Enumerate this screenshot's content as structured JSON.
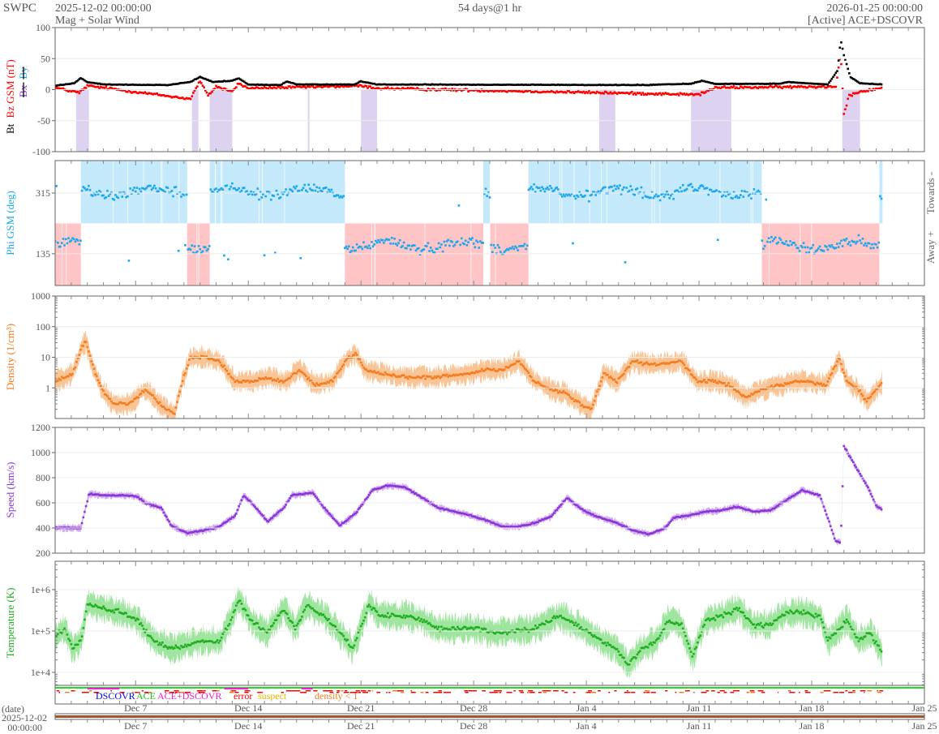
{
  "header": {
    "org": "SWPC",
    "start": "2025-12-02 00:00:00",
    "subtitle": "Mag + Solar Wind",
    "span": "54 days@1 hr",
    "end": "2026-01-25 00:00:00",
    "source": "[Active] ACE+DSCOVR"
  },
  "legend": {
    "dscovr": "DSCOVR",
    "ace": "ACE",
    "ace_dscovr": "ACE+DSCOVR",
    "error": "error",
    "suspect": "suspect",
    "density": "density < 1"
  },
  "date_axis": {
    "label": "(date)",
    "start_date": "2025-12-02",
    "start_time": "00:00:00",
    "ticks": [
      "Dec 7",
      "Dec 14",
      "Dec 21",
      "Dec 28",
      "Jan 4",
      "Jan 11",
      "Jan 18",
      "Jan 25"
    ],
    "tick_days": [
      5,
      12,
      19,
      26,
      33,
      40,
      47,
      54
    ]
  },
  "colors": {
    "bt": "#000000",
    "bz": "#ff0000",
    "bx": "#8a2be2",
    "by": "#1aa7ee",
    "phi": "#1aa7ee",
    "towards_fill": "#c4e9fb",
    "away_fill": "#ffc4c6",
    "density": "#f57c1f",
    "density_fill": "#f9c597",
    "speed": "#8b35d8",
    "speed_fill": "#d2b0f0",
    "temp": "#1fae1f",
    "temp_fill": "#9fe59f",
    "south_fill": "#ddd3f0"
  },
  "chart_data": [
    {
      "type": "scatter",
      "name": "mag",
      "ylabel_parts": [
        "Bt",
        "Bz GSM (nT)",
        "Bx",
        "By"
      ],
      "ylim": [
        -100,
        100
      ],
      "yticks": [
        100,
        50,
        0,
        -50,
        -100
      ],
      "x_unit": "days since 2025-12-02",
      "bt": [
        [
          0,
          6
        ],
        [
          1.2,
          10
        ],
        [
          1.6,
          18
        ],
        [
          2,
          12
        ],
        [
          3,
          8
        ],
        [
          7,
          7
        ],
        [
          8.4,
          12
        ],
        [
          9,
          20
        ],
        [
          9.8,
          12
        ],
        [
          11,
          14
        ],
        [
          11.4,
          18
        ],
        [
          12,
          8
        ],
        [
          14,
          7
        ],
        [
          14.4,
          13
        ],
        [
          15,
          8
        ],
        [
          18.6,
          8
        ],
        [
          19,
          13
        ],
        [
          20,
          8
        ],
        [
          36.9,
          7
        ],
        [
          37.5,
          8
        ],
        [
          39.5,
          9
        ],
        [
          40.2,
          14
        ],
        [
          41,
          9
        ],
        [
          45,
          9
        ],
        [
          45.5,
          12
        ],
        [
          48,
          8
        ],
        [
          48.6,
          30
        ],
        [
          48.8,
          80
        ],
        [
          49,
          55
        ],
        [
          49.4,
          20
        ],
        [
          50,
          10
        ],
        [
          51.4,
          8
        ]
      ],
      "bz": [
        [
          0,
          3
        ],
        [
          1.5,
          -5
        ],
        [
          2,
          6
        ],
        [
          3,
          3
        ],
        [
          8.4,
          -15
        ],
        [
          9,
          14
        ],
        [
          9.5,
          -10
        ],
        [
          10,
          5
        ],
        [
          11,
          -3
        ],
        [
          11.4,
          10
        ],
        [
          12,
          2
        ],
        [
          19,
          6
        ],
        [
          20,
          2
        ],
        [
          34,
          -5
        ],
        [
          40,
          -8
        ],
        [
          41,
          3
        ],
        [
          48.5,
          5
        ],
        [
          48.8,
          60
        ],
        [
          49,
          -40
        ],
        [
          49.3,
          -10
        ],
        [
          50,
          -3
        ],
        [
          51.4,
          3
        ]
      ],
      "southward_intervals": [
        [
          1.3,
          2.1
        ],
        [
          8.5,
          8.9
        ],
        [
          9.6,
          11
        ],
        [
          15.7,
          15.8
        ],
        [
          19,
          20
        ],
        [
          33.8,
          34.8
        ],
        [
          39.5,
          42
        ],
        [
          48.9,
          50
        ]
      ]
    },
    {
      "type": "scatter",
      "name": "phi",
      "ylabel": "Phi GSM (deg)",
      "yticks": [
        315,
        135
      ],
      "ylim": [
        41,
        411
      ],
      "right_labels": [
        "Towards -",
        "Away +"
      ],
      "sectors": [
        [
          0,
          1.6,
          "away"
        ],
        [
          1.6,
          8.2,
          "towards"
        ],
        [
          8.2,
          9.6,
          "away"
        ],
        [
          9.6,
          18,
          "towards"
        ],
        [
          18,
          26.6,
          "away"
        ],
        [
          26.6,
          27,
          "towards"
        ],
        [
          27,
          29.4,
          "away"
        ],
        [
          29.4,
          43.9,
          "towards"
        ],
        [
          43.9,
          51.2,
          "away"
        ],
        [
          51.2,
          51.4,
          "towards"
        ]
      ]
    },
    {
      "type": "scatter",
      "name": "density",
      "scale": "log",
      "ylabel": "Density (1/cm³)",
      "ylim": [
        0.1,
        1000
      ],
      "yticks": [
        1000,
        100,
        10,
        1
      ],
      "values": [
        [
          0,
          1.6
        ],
        [
          1.1,
          3
        ],
        [
          1.6,
          18
        ],
        [
          1.9,
          33
        ],
        [
          2.4,
          4
        ],
        [
          2.9,
          0.9
        ],
        [
          3.6,
          0.3
        ],
        [
          4.6,
          0.3
        ],
        [
          5.6,
          0.9
        ],
        [
          6.6,
          0.26
        ],
        [
          7.4,
          0.14
        ],
        [
          7.9,
          1.6
        ],
        [
          8.4,
          10
        ],
        [
          9.2,
          10
        ],
        [
          10.2,
          7.4
        ],
        [
          11.2,
          1.6
        ],
        [
          12.2,
          1.6
        ],
        [
          13.2,
          2.2
        ],
        [
          14.2,
          1.6
        ],
        [
          15.2,
          4
        ],
        [
          16.2,
          1.2
        ],
        [
          17.2,
          1.6
        ],
        [
          18.2,
          10
        ],
        [
          18.7,
          13
        ],
        [
          19.2,
          4
        ],
        [
          20.2,
          3
        ],
        [
          21.8,
          2.2
        ],
        [
          22.8,
          2.2
        ],
        [
          23.8,
          2.2
        ],
        [
          24.8,
          2.6
        ],
        [
          25.8,
          3
        ],
        [
          26.8,
          4
        ],
        [
          27.8,
          4
        ],
        [
          28.8,
          7.4
        ],
        [
          29.8,
          1.6
        ],
        [
          30.8,
          0.9
        ],
        [
          31.8,
          0.65
        ],
        [
          32.8,
          0.26
        ],
        [
          33.3,
          0.2
        ],
        [
          34.1,
          3
        ],
        [
          34.9,
          1.6
        ],
        [
          35.9,
          7.4
        ],
        [
          36.9,
          6
        ],
        [
          37.9,
          6
        ],
        [
          38.9,
          7.4
        ],
        [
          39.9,
          1.6
        ],
        [
          40.9,
          1.6
        ],
        [
          41.9,
          1.2
        ],
        [
          42.9,
          0.48
        ],
        [
          43.9,
          0.9
        ],
        [
          44.9,
          1.2
        ],
        [
          45.9,
          1.6
        ],
        [
          46.9,
          1.6
        ],
        [
          47.9,
          1.2
        ],
        [
          48.7,
          10
        ],
        [
          49.2,
          1.6
        ],
        [
          49.9,
          0.9
        ],
        [
          50.4,
          0.36
        ],
        [
          51.4,
          1.6
        ]
      ]
    },
    {
      "type": "scatter",
      "name": "speed",
      "ylabel": "Speed (km/s)",
      "ylim": [
        200,
        1200
      ],
      "yticks": [
        1200,
        1000,
        800,
        600,
        400,
        200
      ],
      "values": [
        [
          0,
          400
        ],
        [
          1.6,
          400
        ],
        [
          2.1,
          670
        ],
        [
          3.1,
          660
        ],
        [
          4.6,
          660
        ],
        [
          5.1,
          650
        ],
        [
          5.6,
          600
        ],
        [
          6.6,
          560
        ],
        [
          7.2,
          420
        ],
        [
          8.2,
          360
        ],
        [
          9.2,
          380
        ],
        [
          10.2,
          410
        ],
        [
          11.2,
          500
        ],
        [
          11.7,
          660
        ],
        [
          12.2,
          600
        ],
        [
          13.2,
          450
        ],
        [
          14.2,
          560
        ],
        [
          14.7,
          660
        ],
        [
          16,
          680
        ],
        [
          16.7,
          560
        ],
        [
          17.7,
          420
        ],
        [
          18.7,
          520
        ],
        [
          19.7,
          700
        ],
        [
          20.8,
          740
        ],
        [
          21.8,
          720
        ],
        [
          22.8,
          640
        ],
        [
          23.8,
          560
        ],
        [
          24.8,
          530
        ],
        [
          25.8,
          500
        ],
        [
          26.8,
          460
        ],
        [
          27.8,
          410
        ],
        [
          28.8,
          410
        ],
        [
          29.8,
          440
        ],
        [
          30.8,
          490
        ],
        [
          31.8,
          640
        ],
        [
          32.8,
          540
        ],
        [
          33.9,
          480
        ],
        [
          34.9,
          440
        ],
        [
          35.9,
          380
        ],
        [
          36.9,
          350
        ],
        [
          37.9,
          400
        ],
        [
          38.4,
          480
        ],
        [
          39.4,
          500
        ],
        [
          40.4,
          530
        ],
        [
          41.4,
          540
        ],
        [
          42.4,
          570
        ],
        [
          43.4,
          530
        ],
        [
          44.4,
          540
        ],
        [
          45.4,
          620
        ],
        [
          46.4,
          700
        ],
        [
          47.5,
          660
        ],
        [
          48,
          480
        ],
        [
          48.5,
          290
        ],
        [
          48.8,
          290
        ],
        [
          49,
          1050
        ],
        [
          49.5,
          940
        ],
        [
          50.5,
          720
        ],
        [
          51,
          580
        ],
        [
          51.4,
          540
        ]
      ]
    },
    {
      "type": "scatter",
      "name": "temperature",
      "scale": "log",
      "ylabel": "Temperature (K)",
      "ylim": [
        4860,
        4850000
      ],
      "yticks": [
        1000000,
        100000,
        10000
      ],
      "ytick_labels": [
        "1e+6",
        "1e+5",
        "1e+4"
      ],
      "values": [
        [
          0,
          73000
        ],
        [
          0.6,
          115000
        ],
        [
          1.1,
          37000
        ],
        [
          1.6,
          58000
        ],
        [
          2,
          440000
        ],
        [
          3.1,
          350000
        ],
        [
          4.1,
          280000
        ],
        [
          5.1,
          180000
        ],
        [
          6.1,
          58000
        ],
        [
          7.2,
          37000
        ],
        [
          8.2,
          46000
        ],
        [
          9.2,
          58000
        ],
        [
          10.2,
          58000
        ],
        [
          10.9,
          180000
        ],
        [
          11.4,
          560000
        ],
        [
          12.2,
          180000
        ],
        [
          13.2,
          91000
        ],
        [
          14.2,
          350000
        ],
        [
          14.9,
          115000
        ],
        [
          15.7,
          440000
        ],
        [
          16.7,
          230000
        ],
        [
          17.7,
          91000
        ],
        [
          18.5,
          37000
        ],
        [
          19.5,
          440000
        ],
        [
          20.2,
          230000
        ],
        [
          21.8,
          230000
        ],
        [
          22.8,
          180000
        ],
        [
          23.8,
          115000
        ],
        [
          25.8,
          115000
        ],
        [
          27.8,
          91000
        ],
        [
          29.8,
          115000
        ],
        [
          31.3,
          230000
        ],
        [
          32.8,
          115000
        ],
        [
          33.9,
          58000
        ],
        [
          34.9,
          37000
        ],
        [
          35.6,
          15000
        ],
        [
          36.4,
          37000
        ],
        [
          37.4,
          58000
        ],
        [
          38.1,
          180000
        ],
        [
          38.9,
          140000
        ],
        [
          39.6,
          24000
        ],
        [
          40.4,
          180000
        ],
        [
          41.4,
          230000
        ],
        [
          42.4,
          350000
        ],
        [
          43.4,
          140000
        ],
        [
          44.4,
          140000
        ],
        [
          45.4,
          280000
        ],
        [
          46.4,
          280000
        ],
        [
          47.5,
          230000
        ],
        [
          48,
          58000
        ],
        [
          48.7,
          115000
        ],
        [
          49.2,
          180000
        ],
        [
          49.9,
          58000
        ],
        [
          50.6,
          91000
        ],
        [
          51.4,
          30000
        ]
      ]
    }
  ]
}
